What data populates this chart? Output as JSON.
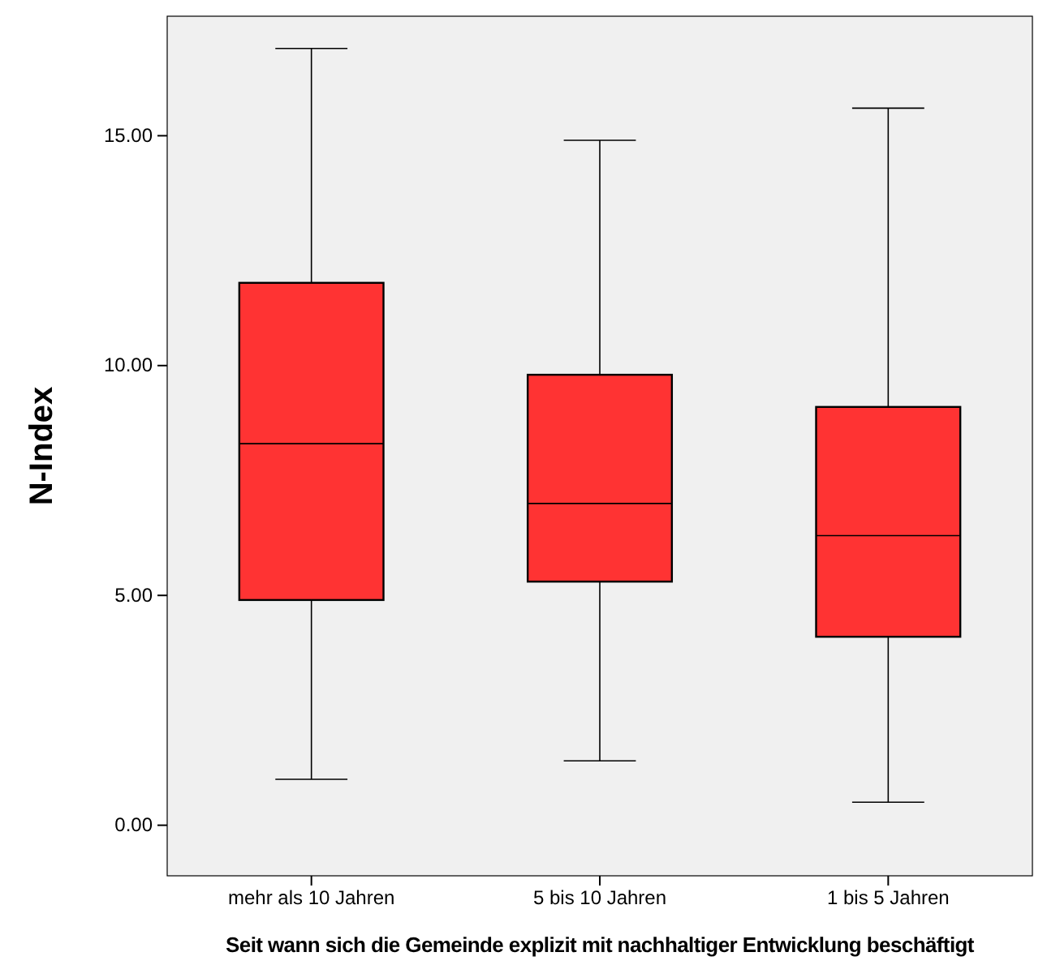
{
  "chart_data": {
    "type": "box",
    "xlabel": "Seit wann sich die Gemeinde explizit mit nachhaltiger Entwicklung beschäftigt",
    "ylabel": "N-Index",
    "categories": [
      "mehr als 10 Jahren",
      "5 bis 10 Jahren",
      "1 bis 5 Jahren"
    ],
    "color": "#ff3333",
    "boxes": [
      {
        "low": 1.0,
        "q1": 4.9,
        "median": 8.3,
        "q3": 11.8,
        "high": 16.9
      },
      {
        "low": 1.4,
        "q1": 5.3,
        "median": 7.0,
        "q3": 9.8,
        "high": 14.9
      },
      {
        "low": 0.5,
        "q1": 4.1,
        "median": 6.3,
        "q3": 9.1,
        "high": 15.6
      }
    ],
    "ylim": [
      -1.1,
      17.6
    ],
    "yticks": [
      {
        "value": 0,
        "label": "0.00"
      },
      {
        "value": 5,
        "label": "5.00"
      },
      {
        "value": 10,
        "label": "10.00"
      },
      {
        "value": 15,
        "label": "15.00"
      }
    ],
    "grid": false
  }
}
